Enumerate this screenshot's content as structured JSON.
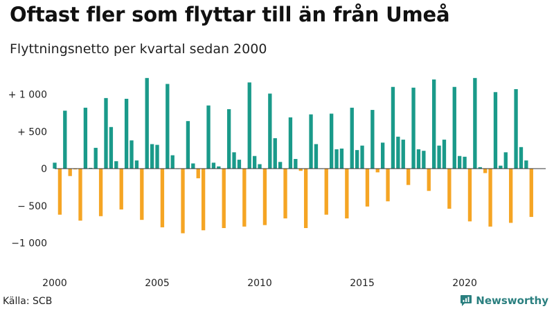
{
  "header": {
    "title": "Oftast fler som flyttar till än från Umeå",
    "subtitle": "Flyttningsnetto per kvartal sedan 2000"
  },
  "footer": {
    "source": "Källa: SCB",
    "brand": "Newsworthy",
    "brand_icon": "newsworthy-logo-icon"
  },
  "colors": {
    "positive": "#1a9a8a",
    "negative": "#f5a524",
    "axis": "#333333",
    "grid": "#d9d9d9",
    "text": "#222222",
    "brand": "#2a7f7f"
  },
  "chart_data": {
    "type": "bar",
    "title": "Oftast fler som flyttar till än från Umeå",
    "subtitle": "Flyttningsnetto per kvartal sedan 2000",
    "xlabel": "",
    "ylabel": "",
    "ylim": [
      -1250,
      1300
    ],
    "xlim": [
      2000,
      2023.95
    ],
    "yticks": [
      {
        "value": 1000,
        "label": "+ 1 000"
      },
      {
        "value": 500,
        "label": "+   500"
      },
      {
        "value": 0,
        "label": "0"
      },
      {
        "value": -500,
        "label": "− 500"
      },
      {
        "value": -1000,
        "label": "−1 000"
      }
    ],
    "xticks": [
      {
        "value": 2000,
        "label": "2000"
      },
      {
        "value": 2005,
        "label": "2005"
      },
      {
        "value": 2010,
        "label": "2010"
      },
      {
        "value": 2015,
        "label": "2015"
      },
      {
        "value": 2020,
        "label": "2020"
      }
    ],
    "grid": false,
    "legend": "none",
    "series": [
      {
        "start_year": 2000,
        "periods_per_year": 4,
        "values": [
          80,
          -620,
          780,
          -100,
          -10,
          -700,
          820,
          10,
          280,
          -640,
          950,
          560,
          100,
          -550,
          940,
          380,
          110,
          -690,
          1220,
          330,
          320,
          -790,
          1140,
          180,
          0,
          -870,
          640,
          70,
          -130,
          -830,
          850,
          80,
          30,
          -800,
          800,
          220,
          120,
          -780,
          1160,
          170,
          60,
          -760,
          1010,
          410,
          90,
          -670,
          690,
          130,
          -30,
          -800,
          730,
          330,
          0,
          -620,
          740,
          260,
          270,
          -670,
          820,
          250,
          310,
          -510,
          790,
          -50,
          350,
          -440,
          1100,
          430,
          390,
          -220,
          1090,
          260,
          240,
          -300,
          1200,
          310,
          390,
          -540,
          1100,
          170,
          160,
          -710,
          1220,
          20,
          -60,
          -780,
          1030,
          40,
          220,
          -730,
          1070,
          290,
          110,
          -650
        ]
      }
    ]
  }
}
